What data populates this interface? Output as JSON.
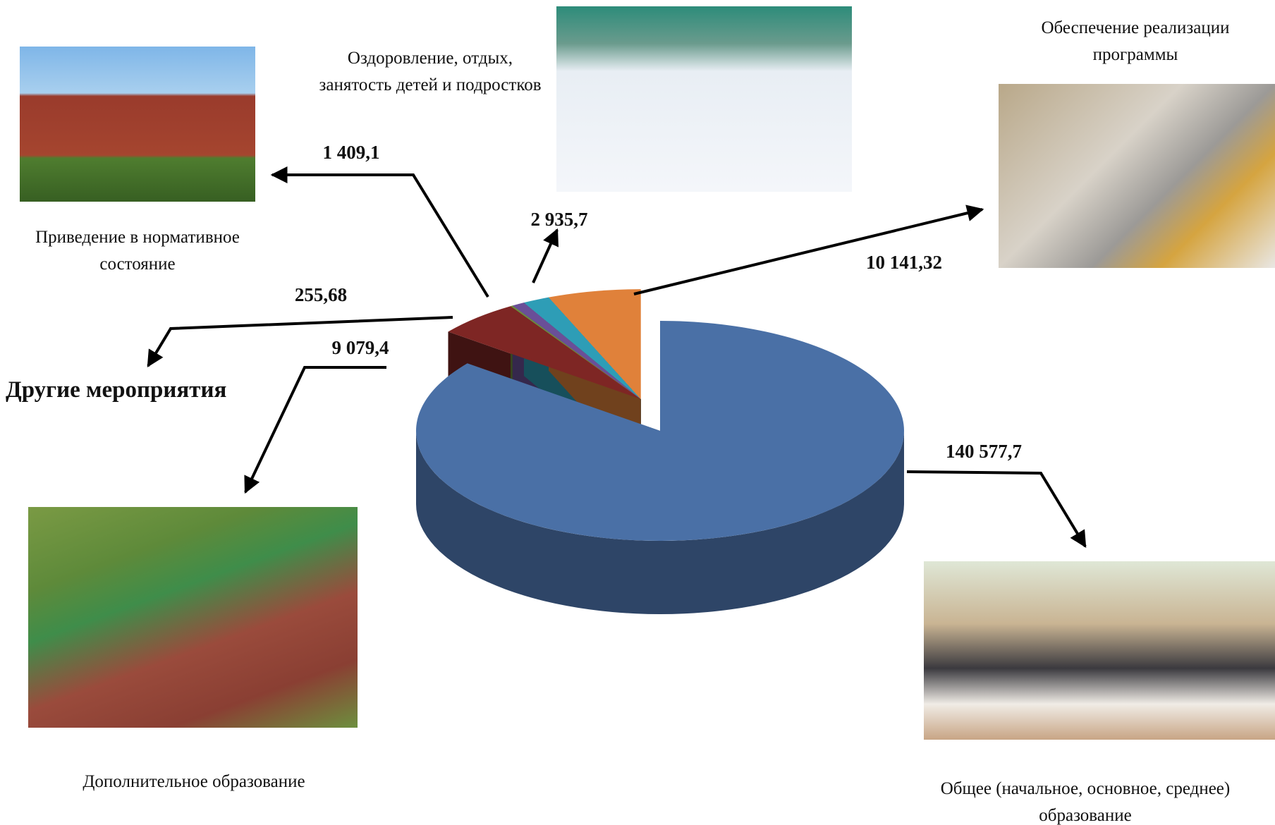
{
  "chart_data": {
    "type": "pie",
    "categories": [
      "Общее (начальное, основное, среднее) образование",
      "Дополнительное образование",
      "Другие мероприятия",
      "Приведение в нормативное состояние",
      "Оздоровление, отдых, занятость детей и подростков",
      "Обеспечение реализации программы"
    ],
    "values": [
      140577.7,
      9079.4,
      255.68,
      1409.1,
      2935.7,
      10141.32
    ],
    "value_labels": [
      "140 577,7",
      "9 079,4",
      "255,68",
      "1 409,1",
      "2 935,7",
      "10 141,32"
    ],
    "colors": [
      "#4a70a6",
      "#7e2624",
      "#6f8a3c",
      "#6a4f98",
      "#2e9db6",
      "#e0813a"
    ],
    "style": "3d"
  }
}
